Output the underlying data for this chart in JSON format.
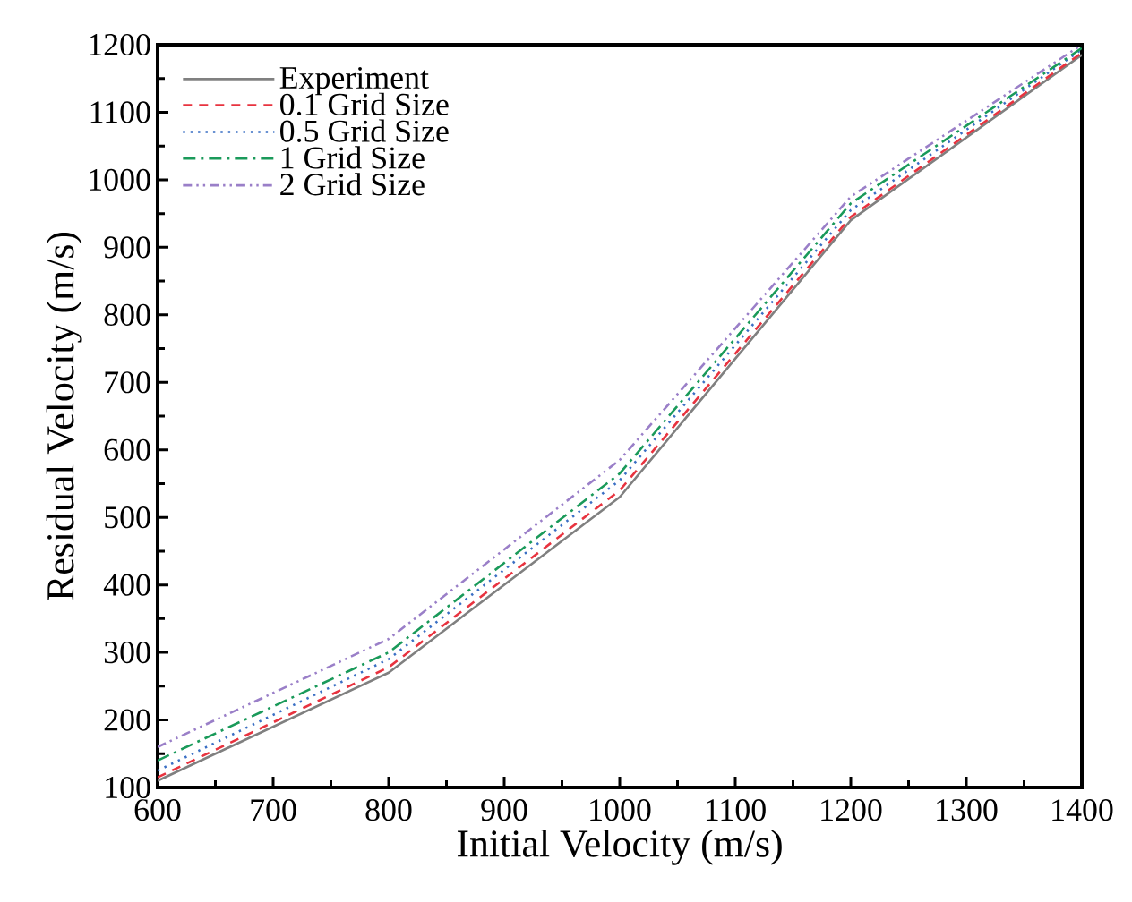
{
  "chart_data": {
    "type": "line",
    "xlabel": "Initial Velocity (m/s)",
    "ylabel": "Residual Velocity (m/s)",
    "x": [
      600,
      800,
      1000,
      1200,
      1400
    ],
    "series": [
      {
        "name": "Experiment",
        "color": "#808080",
        "line_style": "solid",
        "values": [
          110,
          270,
          530,
          940,
          1185
        ]
      },
      {
        "name": "0.1 Grid Size",
        "color": "#e8333f",
        "line_style": "dashed",
        "values": [
          115,
          278,
          540,
          945,
          1188
        ]
      },
      {
        "name": "0.5 Grid Size",
        "color": "#3a6fc4",
        "line_style": "dotted",
        "values": [
          125,
          290,
          555,
          955,
          1193
        ]
      },
      {
        "name": "1  Grid Size",
        "color": "#1a9a5a",
        "line_style": "dashdot",
        "values": [
          140,
          300,
          565,
          965,
          1195
        ]
      },
      {
        "name": "2  Grid Size",
        "color": "#9a7fc8",
        "line_style": "dashdotdot",
        "values": [
          160,
          320,
          585,
          975,
          1200
        ]
      }
    ],
    "xlim": [
      600,
      1400
    ],
    "ylim": [
      100,
      1200
    ],
    "xticks": [
      600,
      700,
      800,
      900,
      1000,
      1100,
      1200,
      1300,
      1400
    ],
    "yticks": [
      100,
      200,
      300,
      400,
      500,
      600,
      700,
      800,
      900,
      1000,
      1100,
      1200
    ],
    "grid": false,
    "legend": "top left"
  }
}
